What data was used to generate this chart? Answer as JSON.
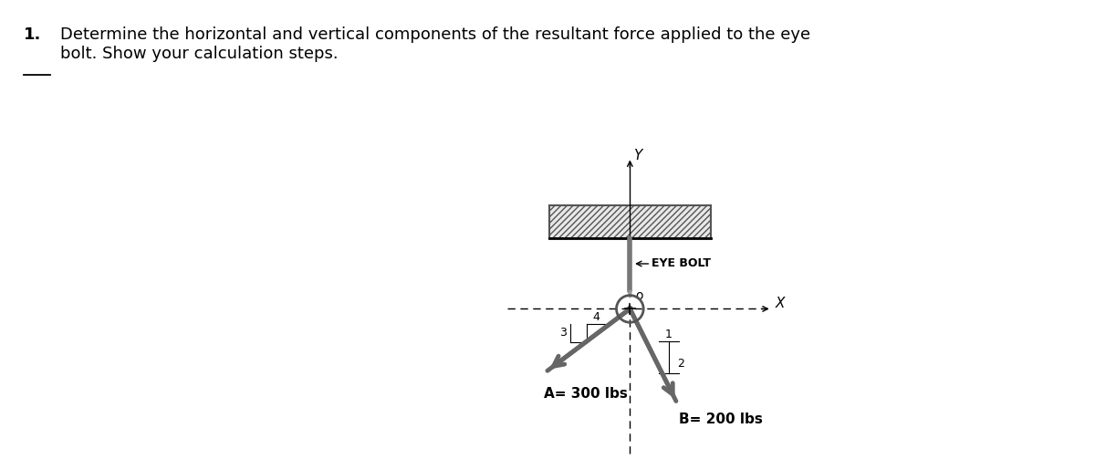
{
  "title_number": "1.",
  "title_text": "Determine the horizontal and vertical components of the resultant force applied to the eye\nbolt. Show your calculation steps.",
  "background_color": "#ffffff",
  "figure_width": 12.0,
  "figure_height": 5.15,
  "dpi": 100,
  "force_A": {
    "label": "A= 300 lbs",
    "ratio_x": -4,
    "ratio_y": -3
  },
  "force_B": {
    "label": "B= 200 lbs",
    "ratio_x": 1,
    "ratio_y": -2
  },
  "eye_bolt_label": "← EYE BOLT",
  "axis_label_x": "X",
  "axis_label_y": "Y",
  "origin_label": "o",
  "dim_A_horizontal": "4",
  "dim_A_vertical": "3",
  "dim_B_horizontal": "1",
  "dim_B_vertical": "2",
  "xlim": [
    -5.5,
    6.5
  ],
  "ylim": [
    -5.0,
    5.5
  ]
}
